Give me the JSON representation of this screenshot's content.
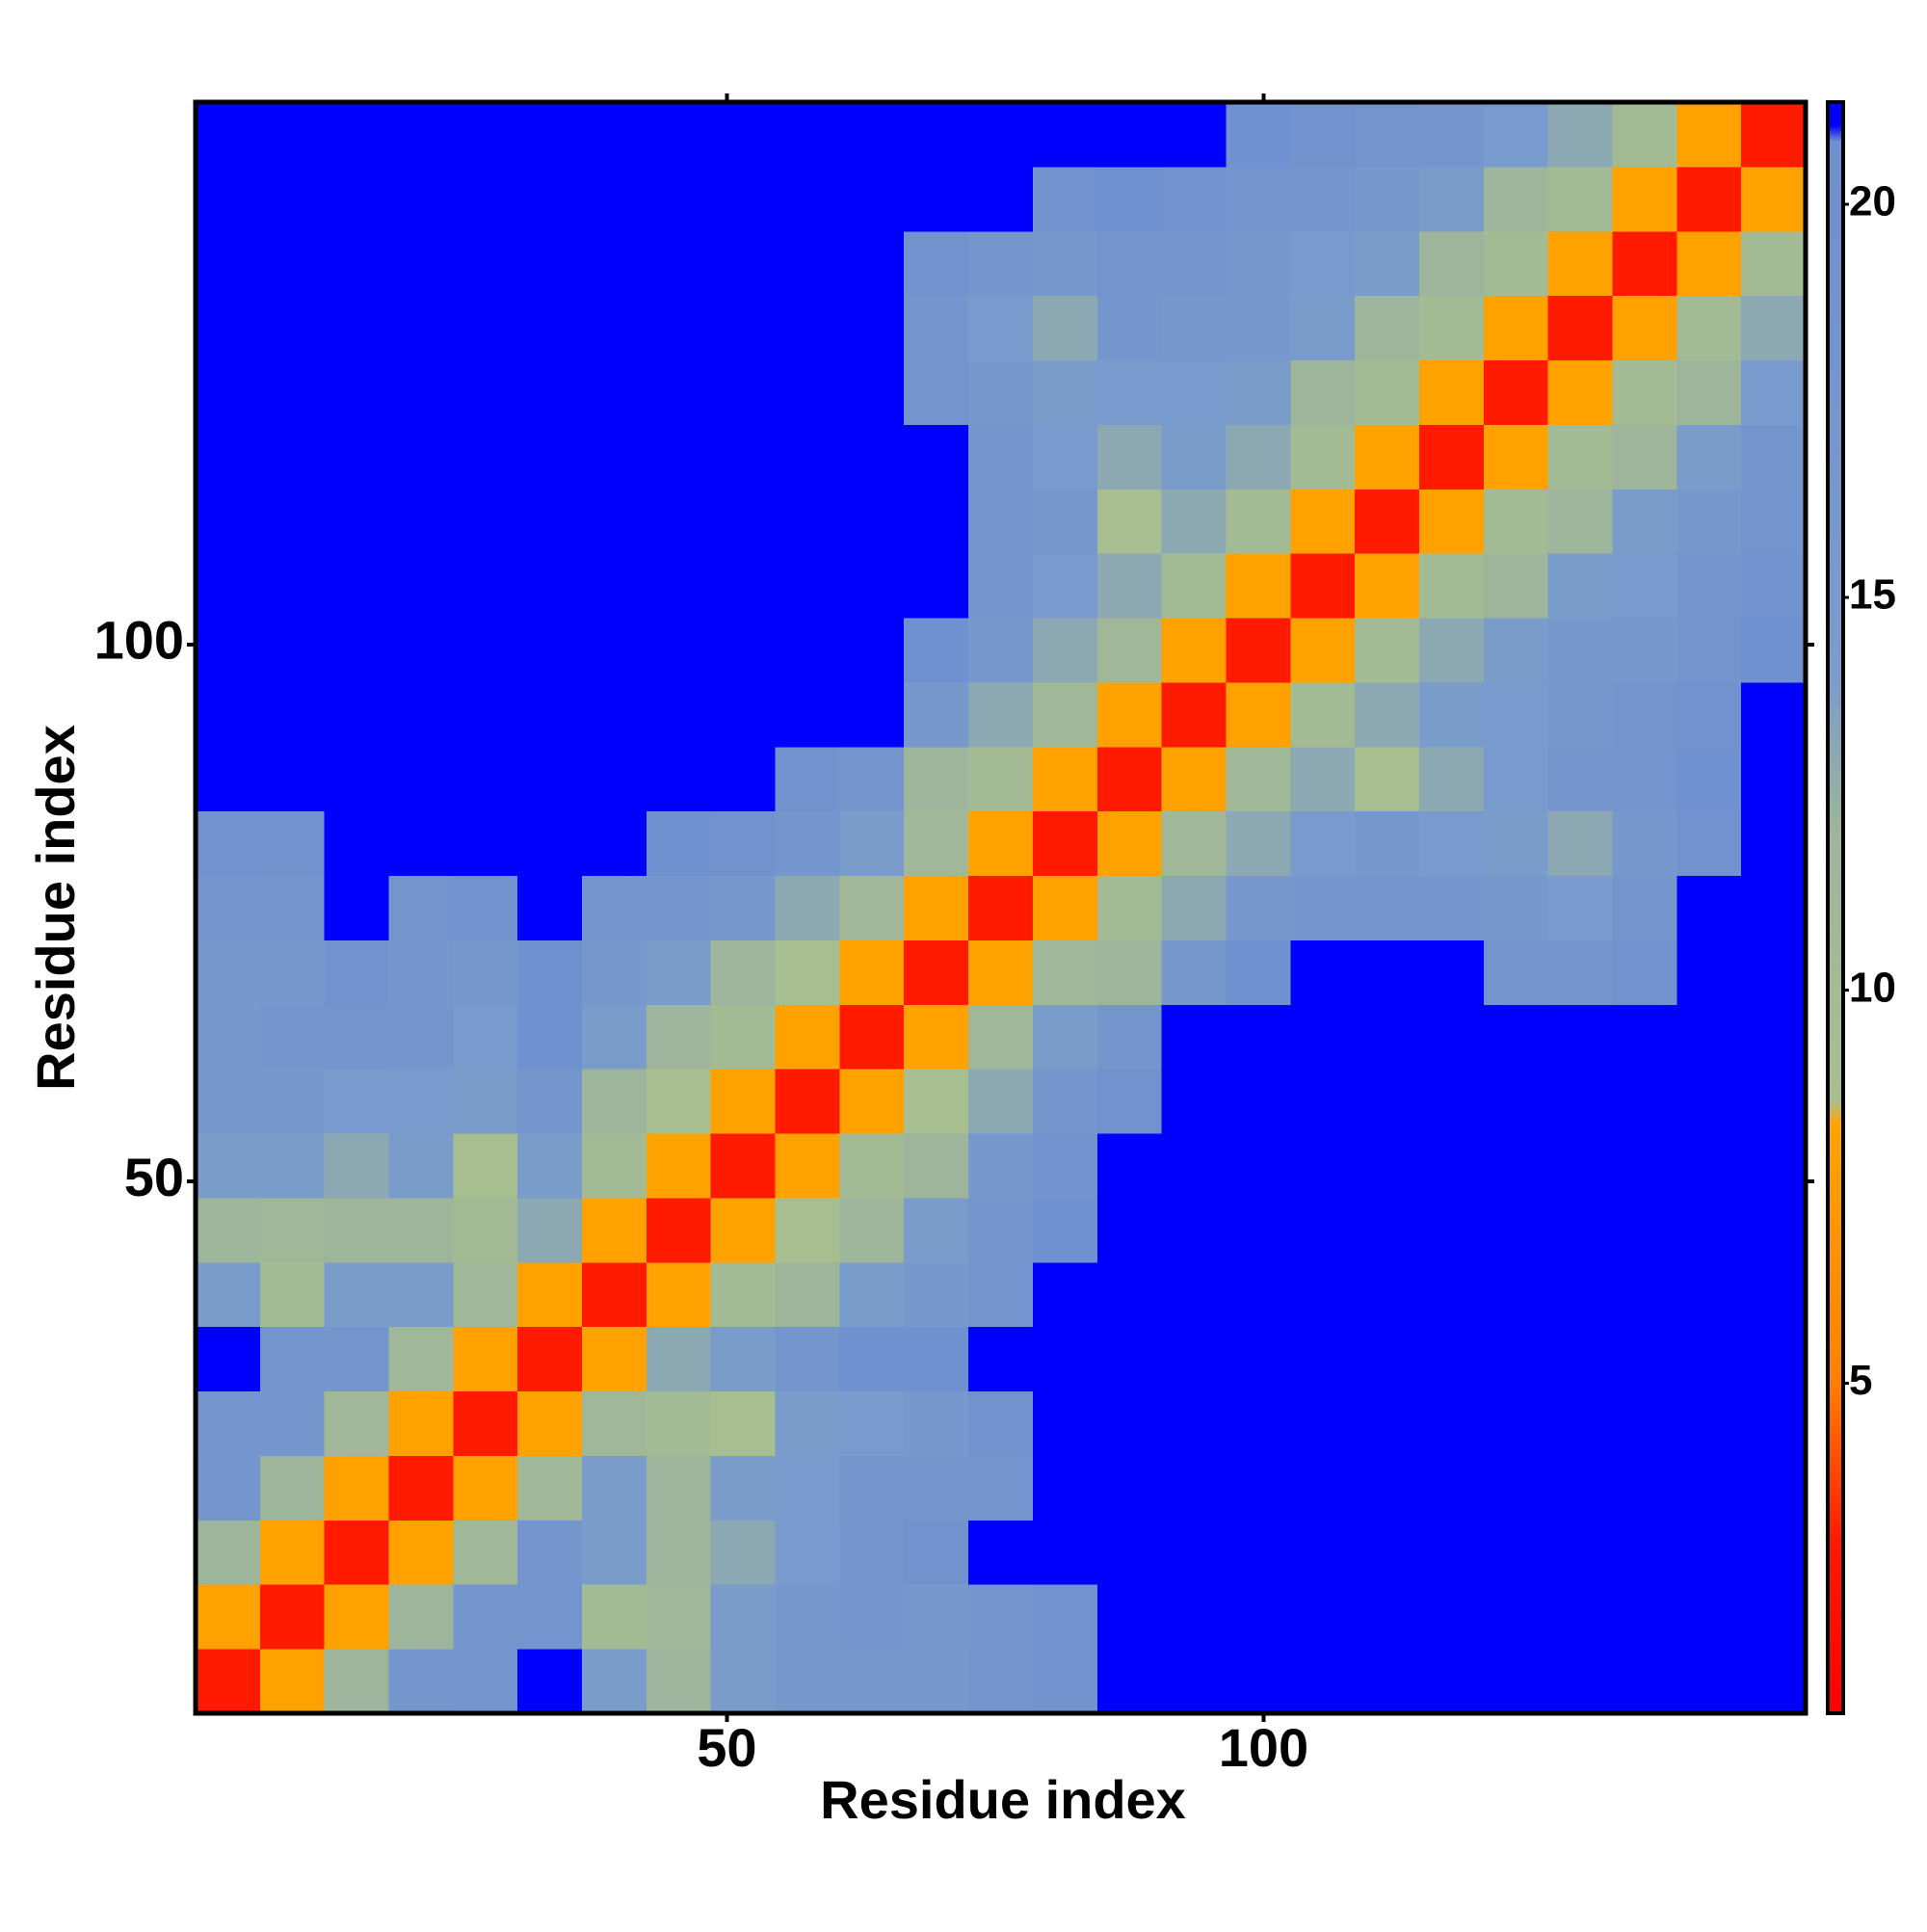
{
  "chart_data": {
    "type": "heatmap",
    "x_label": "Residue index",
    "y_label": "Residue index",
    "xlim": [
      0.5,
      150.5
    ],
    "ylim": [
      0.5,
      150.5
    ],
    "xticks": [
      50,
      100
    ],
    "yticks": [
      50,
      100
    ],
    "z": [
      [
        3,
        8,
        12,
        17,
        18,
        22,
        14,
        12,
        14,
        16,
        16,
        16,
        18,
        19,
        22,
        22,
        22,
        22,
        22,
        22,
        22,
        22,
        22,
        22,
        22
      ],
      [
        8,
        3,
        8,
        12,
        17,
        18,
        10,
        11,
        14,
        16,
        17,
        16,
        17,
        19,
        22,
        22,
        22,
        22,
        22,
        22,
        22,
        22,
        22,
        22,
        22
      ],
      [
        12,
        8,
        3,
        8,
        11,
        17,
        14,
        12,
        13,
        15,
        18,
        19,
        21,
        22,
        22,
        22,
        22,
        22,
        22,
        22,
        22,
        22,
        22,
        22,
        22
      ],
      [
        17,
        12,
        8,
        3,
        8,
        11,
        14,
        12,
        14,
        15,
        17,
        17,
        18,
        22,
        22,
        22,
        22,
        22,
        22,
        22,
        22,
        22,
        22,
        22,
        22
      ],
      [
        18,
        17,
        11,
        8,
        3,
        8,
        11,
        10,
        9,
        14,
        15,
        16,
        19,
        22,
        22,
        22,
        22,
        22,
        22,
        22,
        22,
        22,
        22,
        22,
        22
      ],
      [
        22,
        18,
        17,
        11,
        8,
        3,
        8,
        13,
        14,
        17,
        20,
        20,
        22,
        22,
        22,
        22,
        22,
        22,
        22,
        22,
        22,
        22,
        22,
        22,
        22
      ],
      [
        14,
        10,
        14,
        14,
        11,
        8,
        3,
        8,
        10,
        12,
        14,
        16,
        18,
        22,
        22,
        22,
        22,
        22,
        22,
        22,
        22,
        22,
        22,
        22,
        22
      ],
      [
        12,
        11,
        12,
        12,
        10,
        13,
        8,
        3,
        8,
        9,
        12,
        14,
        17,
        20,
        22,
        22,
        22,
        22,
        22,
        22,
        22,
        22,
        22,
        22,
        22
      ],
      [
        14,
        14,
        13,
        14,
        9,
        14,
        10,
        8,
        3,
        8,
        10,
        12,
        16,
        19,
        22,
        22,
        22,
        22,
        22,
        22,
        22,
        22,
        22,
        22,
        22
      ],
      [
        16,
        16,
        15,
        15,
        14,
        17,
        12,
        9,
        8,
        3,
        8,
        9,
        13,
        17,
        19,
        22,
        22,
        22,
        22,
        22,
        22,
        22,
        22,
        22,
        22
      ],
      [
        16,
        17,
        18,
        17,
        15,
        20,
        14,
        12,
        10,
        8,
        3,
        8,
        11,
        14,
        17,
        22,
        22,
        22,
        22,
        22,
        22,
        22,
        22,
        22,
        22
      ],
      [
        16,
        16,
        19,
        17,
        16,
        20,
        16,
        14,
        12,
        9,
        8,
        3,
        8,
        11,
        12,
        16,
        20,
        22,
        22,
        21,
        18,
        17,
        19,
        22,
        22
      ],
      [
        18,
        17,
        21,
        18,
        19,
        22,
        18,
        17,
        16,
        13,
        11,
        8,
        3,
        8,
        10,
        13,
        16,
        17,
        18,
        17,
        16,
        15,
        17,
        21,
        22
      ],
      [
        19,
        19,
        22,
        22,
        22,
        22,
        22,
        20,
        19,
        17,
        14,
        11,
        8,
        3,
        8,
        11,
        13,
        15,
        16,
        15,
        14,
        13,
        16,
        19,
        22
      ],
      [
        22,
        22,
        22,
        22,
        22,
        22,
        22,
        22,
        22,
        19,
        17,
        12,
        10,
        8,
        3,
        8,
        11,
        13,
        9,
        13,
        15,
        17,
        18,
        20,
        22
      ],
      [
        22,
        22,
        22,
        22,
        22,
        22,
        22,
        22,
        22,
        22,
        22,
        16,
        13,
        11,
        8,
        3,
        8,
        10,
        13,
        14,
        15,
        16,
        18,
        19,
        21
      ],
      [
        22,
        22,
        22,
        22,
        22,
        22,
        22,
        22,
        22,
        22,
        22,
        20,
        16,
        13,
        11,
        8,
        3,
        8,
        10,
        13,
        14,
        16,
        16,
        18,
        20
      ],
      [
        22,
        22,
        22,
        22,
        22,
        22,
        22,
        22,
        22,
        22,
        22,
        22,
        17,
        15,
        13,
        10,
        8,
        3,
        8,
        10,
        12,
        14,
        15,
        17,
        19
      ],
      [
        22,
        22,
        22,
        22,
        22,
        22,
        22,
        22,
        22,
        22,
        22,
        22,
        18,
        16,
        9,
        13,
        10,
        8,
        3,
        8,
        10,
        12,
        14,
        16,
        18
      ],
      [
        22,
        22,
        22,
        22,
        22,
        22,
        22,
        22,
        22,
        22,
        22,
        21,
        17,
        15,
        13,
        14,
        13,
        10,
        8,
        3,
        8,
        10,
        12,
        14,
        17
      ],
      [
        22,
        22,
        22,
        22,
        22,
        22,
        22,
        22,
        22,
        22,
        22,
        18,
        16,
        14,
        15,
        15,
        14,
        12,
        10,
        8,
        3,
        8,
        10,
        12,
        15
      ],
      [
        22,
        22,
        22,
        22,
        22,
        22,
        22,
        22,
        22,
        22,
        22,
        17,
        15,
        13,
        17,
        16,
        16,
        14,
        12,
        10,
        8,
        3,
        8,
        10,
        13
      ],
      [
        22,
        22,
        22,
        22,
        22,
        22,
        22,
        22,
        22,
        22,
        22,
        19,
        17,
        16,
        18,
        18,
        16,
        15,
        14,
        12,
        10,
        8,
        3,
        8,
        10
      ],
      [
        22,
        22,
        22,
        22,
        22,
        22,
        22,
        22,
        22,
        22,
        22,
        22,
        21,
        19,
        20,
        19,
        18,
        17,
        16,
        14,
        12,
        10,
        8,
        3,
        8
      ],
      [
        22,
        22,
        22,
        22,
        22,
        22,
        22,
        22,
        22,
        22,
        22,
        22,
        22,
        22,
        22,
        21,
        20,
        19,
        18,
        17,
        15,
        13,
        10,
        8,
        3
      ]
    ],
    "colorbar": {
      "lim": [
        0.8,
        21.3
      ],
      "ticks": [
        5,
        10,
        15,
        20
      ],
      "colorscale": [
        {
          "value": 0.8,
          "color": "#ff0000"
        },
        {
          "value": 3,
          "color": "#ff1a00"
        },
        {
          "value": 5,
          "color": "#ff8000"
        },
        {
          "value": 8.3,
          "color": "#ffa500"
        },
        {
          "value": 8.6,
          "color": "#a8bf8f"
        },
        {
          "value": 12,
          "color": "#9db59a"
        },
        {
          "value": 14,
          "color": "#7a9ccb"
        },
        {
          "value": 20.8,
          "color": "#6f8fcf"
        },
        {
          "value": 21,
          "color": "#0000ff"
        }
      ]
    }
  }
}
